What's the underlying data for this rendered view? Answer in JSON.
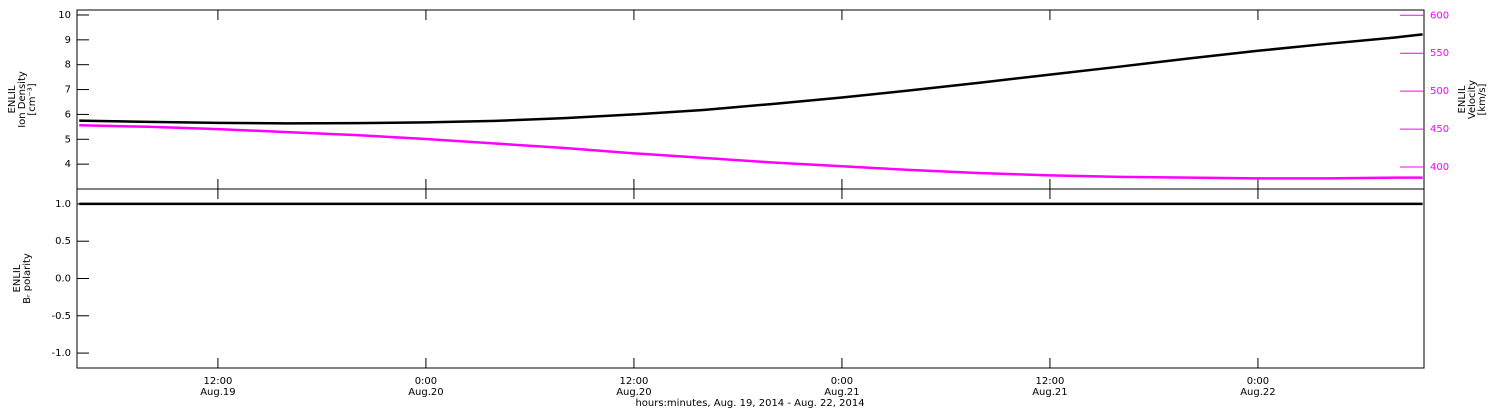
{
  "chart_data": [
    {
      "type": "line",
      "y_label": [
        "ENLIL",
        "Ion Density",
        "[cm⁻³]"
      ],
      "y2_label": [
        "ENLIL",
        "Velocity",
        "[km/s]"
      ],
      "xlim": [
        3.87,
        81.58
      ],
      "x": [
        4,
        8,
        12,
        16,
        20,
        24,
        28,
        32,
        36,
        40,
        44,
        48,
        52,
        56,
        60,
        64,
        68,
        72,
        76,
        80,
        81.5
      ],
      "ylim": [
        3.0,
        10.2
      ],
      "yticks": [
        4,
        5,
        6,
        7,
        8,
        9,
        10
      ],
      "y2lim": [
        371,
        607
      ],
      "y2ticks": [
        400,
        450,
        500,
        550,
        600
      ],
      "y2color": "#ff00ff",
      "series": [
        {
          "name": "Ion Density",
          "color": "#000000",
          "values": [
            5.75,
            5.7,
            5.66,
            5.64,
            5.65,
            5.68,
            5.74,
            5.85,
            6.0,
            6.18,
            6.42,
            6.68,
            6.97,
            7.28,
            7.6,
            7.92,
            8.25,
            8.56,
            8.84,
            9.1,
            9.22
          ]
        },
        {
          "name": "Velocity",
          "color": "#ff00ff",
          "axis": "y2",
          "values": [
            455,
            453,
            450,
            446,
            442,
            437,
            431,
            425,
            418,
            412,
            406,
            401,
            396,
            392,
            389,
            387,
            386,
            385,
            385,
            386,
            386
          ]
        }
      ]
    },
    {
      "type": "line",
      "y_label": [
        "ENLIL",
        "Bᵣ polarity"
      ],
      "x_label": "hours:minutes, Aug. 19, 2014 - Aug. 22, 2014",
      "xlim": [
        3.87,
        81.58
      ],
      "xticks": [
        {
          "value": 12,
          "label": "12:00",
          "date": "Aug.19"
        },
        {
          "value": 24,
          "label": "0:00",
          "date": "Aug.20"
        },
        {
          "value": 36,
          "label": "12:00",
          "date": "Aug.20"
        },
        {
          "value": 48,
          "label": "0:00",
          "date": "Aug.21"
        },
        {
          "value": 60,
          "label": "12:00",
          "date": "Aug.21"
        },
        {
          "value": 72,
          "label": "0:00",
          "date": "Aug.22"
        }
      ],
      "x": [
        4,
        8,
        12,
        16,
        20,
        24,
        28,
        32,
        36,
        40,
        44,
        48,
        52,
        56,
        60,
        64,
        68,
        72,
        76,
        80,
        81.5
      ],
      "ylim": [
        -1.2,
        1.2
      ],
      "yticks": [
        {
          "value": -1,
          "label": "-1.0"
        },
        -0.5,
        {
          "value": 0,
          "label": "0.0"
        },
        0.5,
        {
          "value": 1,
          "label": "1.0"
        }
      ],
      "series": [
        {
          "name": "Br polarity",
          "color": "#000000",
          "values": [
            1,
            1,
            1,
            1,
            1,
            1,
            1,
            1,
            1,
            1,
            1,
            1,
            1,
            1,
            1,
            1,
            1,
            1,
            1,
            1,
            1
          ]
        }
      ]
    }
  ]
}
